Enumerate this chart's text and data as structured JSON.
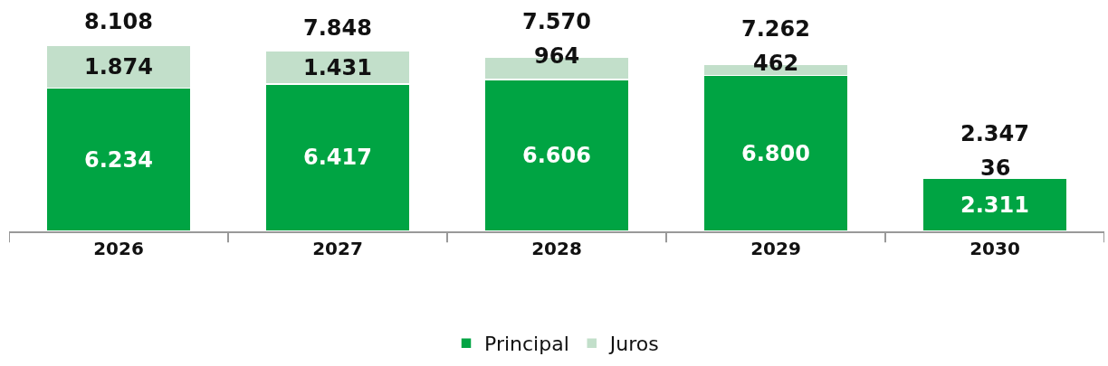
{
  "chart_data": {
    "type": "bar",
    "stacked": true,
    "categories": [
      "2026",
      "2027",
      "2028",
      "2029",
      "2030"
    ],
    "series": [
      {
        "name": "Principal",
        "color": "#00a443",
        "values": [
          6234,
          6417,
          6606,
          6800,
          2311
        ],
        "value_labels": [
          "6.234",
          "6.417",
          "6.606",
          "6.800",
          "2.311"
        ]
      },
      {
        "name": "Juros",
        "color": "#c2dfca",
        "values": [
          1874,
          1431,
          964,
          462,
          36
        ],
        "value_labels": [
          "1.874",
          "1.431",
          "964",
          "462",
          "36"
        ]
      }
    ],
    "totals": [
      "8.108",
      "7.848",
      "7.570",
      "7.262",
      "2.347"
    ],
    "legend": "bottom"
  }
}
